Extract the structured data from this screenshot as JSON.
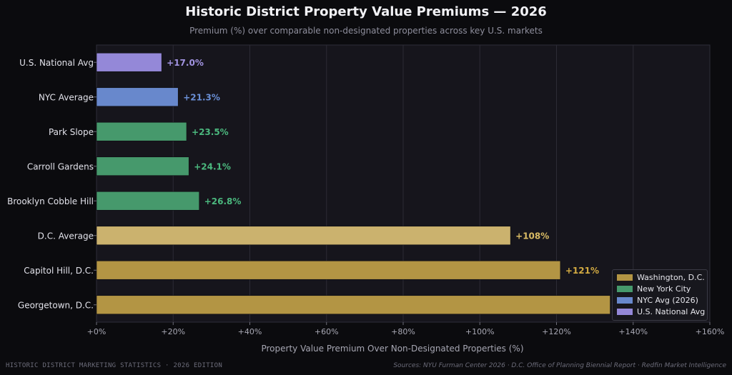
{
  "chart_data": {
    "type": "bar",
    "orientation": "horizontal",
    "title": "Historic District Property Value Premiums — 2026",
    "subtitle": "Premium (%) over comparable non-designated properties across key U.S. markets",
    "xlabel": "Property Value Premium Over Non-Designated Properties (%)",
    "ylabel": "",
    "xlim": [
      0,
      160
    ],
    "xticks": [
      0,
      20,
      40,
      60,
      80,
      100,
      120,
      140,
      160
    ],
    "xtick_labels": [
      "+0%",
      "+20%",
      "+40%",
      "+60%",
      "+80%",
      "+100%",
      "+120%",
      "+140%",
      "+160%"
    ],
    "grid": true,
    "legend_position": "bottom-right",
    "categories": [
      "U.S. National Avg",
      "NYC Average",
      "Park Slope",
      "Carroll Gardens",
      "Brooklyn Cobble Hill",
      "D.C. Average",
      "Capitol Hill, D.C.",
      "Georgetown, D.C."
    ],
    "values": [
      17.0,
      21.3,
      23.5,
      24.1,
      26.8,
      108,
      121,
      134
    ],
    "value_labels": [
      "+17.0%",
      "+21.3%",
      "+23.5%",
      "+24.1%",
      "+26.8%",
      "+108%",
      "+121%",
      ""
    ],
    "bar_groups": [
      "U.S. National Avg",
      "NYC Avg (2026)",
      "New York City",
      "New York City",
      "New York City",
      "Washington, D.C.",
      "Washington, D.C.",
      "Washington, D.C."
    ],
    "bar_colors": [
      "#9488d8",
      "#6888cc",
      "#46996c",
      "#46996c",
      "#46996c",
      "#cbb26e",
      "#b39544",
      "#b39544"
    ],
    "label_colors": [
      "#a294e2",
      "#6a8fd6",
      "#4bb87e",
      "#4bb87e",
      "#4bb87e",
      "#d9bb64",
      "#d2aa42",
      "#d2aa42"
    ],
    "legend": [
      {
        "name": "Washington, D.C.",
        "color": "#b39544"
      },
      {
        "name": "New York City",
        "color": "#46996c"
      },
      {
        "name": "NYC Avg (2026)",
        "color": "#6888cc"
      },
      {
        "name": "U.S. National Avg",
        "color": "#9488d8"
      }
    ]
  },
  "footer": {
    "left": "HISTORIC DISTRICT MARKETING STATISTICS  ·  2026 EDITION",
    "right": "Sources: NYU Furman Center 2026 · D.C. Office of Planning Biennial Report · Redfin Market Intelligence"
  },
  "colors": {
    "background": "#0b0b0e",
    "plot_background": "#16151c",
    "grid": "#2c2b35",
    "axis_text": "#a8a8b4"
  }
}
